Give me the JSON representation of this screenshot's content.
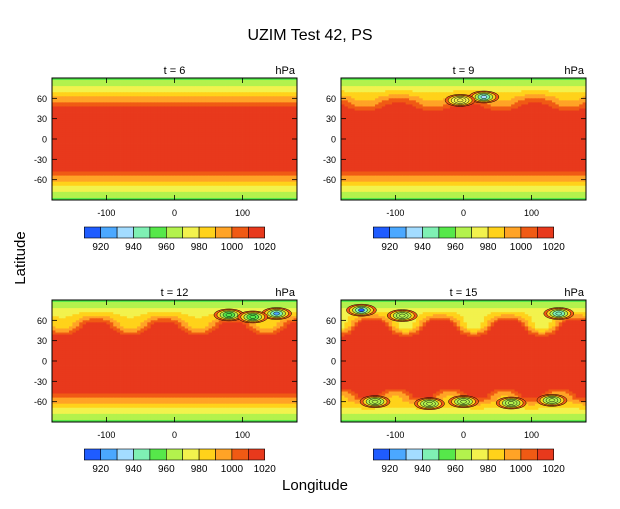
{
  "figure": {
    "title": "UZIM Test 42, PS",
    "xlabel": "Longitude",
    "ylabel": "Latitude"
  },
  "colorbar": {
    "tick_labels": [
      "920",
      "940",
      "960",
      "980",
      "1000",
      "1020"
    ],
    "colors": [
      "#1f5cff",
      "#4ba8ff",
      "#a3dcff",
      "#7ff0b4",
      "#56e84a",
      "#b3f24d",
      "#f2f24d",
      "#ffd21a",
      "#ffa326",
      "#f05a14",
      "#e8391c"
    ]
  },
  "chart_data": [
    {
      "type": "heatmap",
      "title": "t = 6",
      "unit_label": "hPa",
      "x_ticks": [
        -100,
        0,
        100
      ],
      "y_ticks": [
        60,
        30,
        0,
        -30,
        -60
      ],
      "xlim": [
        -180,
        180
      ],
      "ylim": [
        -90,
        90
      ],
      "levels": [
        910,
        920,
        930,
        940,
        950,
        960,
        970,
        980,
        990,
        1000,
        1010,
        1020,
        1030
      ],
      "field": "zonal bands; max ~1020 between 35S and 35N; ~960 near poles",
      "lows": []
    },
    {
      "type": "heatmap",
      "title": "t = 9",
      "unit_label": "hPa",
      "x_ticks": [
        -100,
        0,
        100
      ],
      "y_ticks": [
        60,
        30,
        0,
        -30,
        -60
      ],
      "xlim": [
        -180,
        180
      ],
      "ylim": [
        -90,
        90
      ],
      "levels": [
        910,
        920,
        930,
        940,
        950,
        960,
        970,
        980,
        990,
        1000,
        1010,
        1020,
        1030
      ],
      "field": "zonal bands with developing northern wave",
      "lows": [
        {
          "lon": 30,
          "lat": 62,
          "value": 930
        },
        {
          "lon": -5,
          "lat": 57,
          "value": 975
        }
      ]
    },
    {
      "type": "heatmap",
      "title": "t = 12",
      "unit_label": "hPa",
      "x_ticks": [
        -100,
        0,
        100
      ],
      "y_ticks": [
        60,
        30,
        0,
        -30,
        -60
      ],
      "xlim": [
        -180,
        180
      ],
      "ylim": [
        -90,
        90
      ],
      "levels": [
        910,
        920,
        930,
        940,
        950,
        960,
        970,
        980,
        990,
        1000,
        1010,
        1020,
        1030
      ],
      "field": "zonal bands with breaking northern wave",
      "lows": [
        {
          "lon": 150,
          "lat": 70,
          "value": 920
        },
        {
          "lon": 80,
          "lat": 68,
          "value": 950
        },
        {
          "lon": 115,
          "lat": 65,
          "value": 955
        }
      ]
    },
    {
      "type": "heatmap",
      "title": "t = 15",
      "unit_label": "hPa",
      "x_ticks": [
        -100,
        0,
        100
      ],
      "y_ticks": [
        60,
        30,
        0,
        -30,
        -60
      ],
      "xlim": [
        -180,
        180
      ],
      "ylim": [
        -90,
        90
      ],
      "levels": [
        910,
        920,
        930,
        940,
        950,
        960,
        970,
        980,
        990,
        1000,
        1010,
        1020,
        1030
      ],
      "field": "turbulent northern and southern mid-latitudes",
      "lows": [
        {
          "lon": -150,
          "lat": 75,
          "value": 915
        },
        {
          "lon": -90,
          "lat": 67,
          "value": 960
        },
        {
          "lon": 140,
          "lat": 70,
          "value": 945
        },
        {
          "lon": -130,
          "lat": -60,
          "value": 965
        },
        {
          "lon": -50,
          "lat": -63,
          "value": 965
        },
        {
          "lon": 0,
          "lat": -60,
          "value": 965
        },
        {
          "lon": 70,
          "lat": -62,
          "value": 965
        },
        {
          "lon": 130,
          "lat": -58,
          "value": 965
        }
      ]
    }
  ]
}
